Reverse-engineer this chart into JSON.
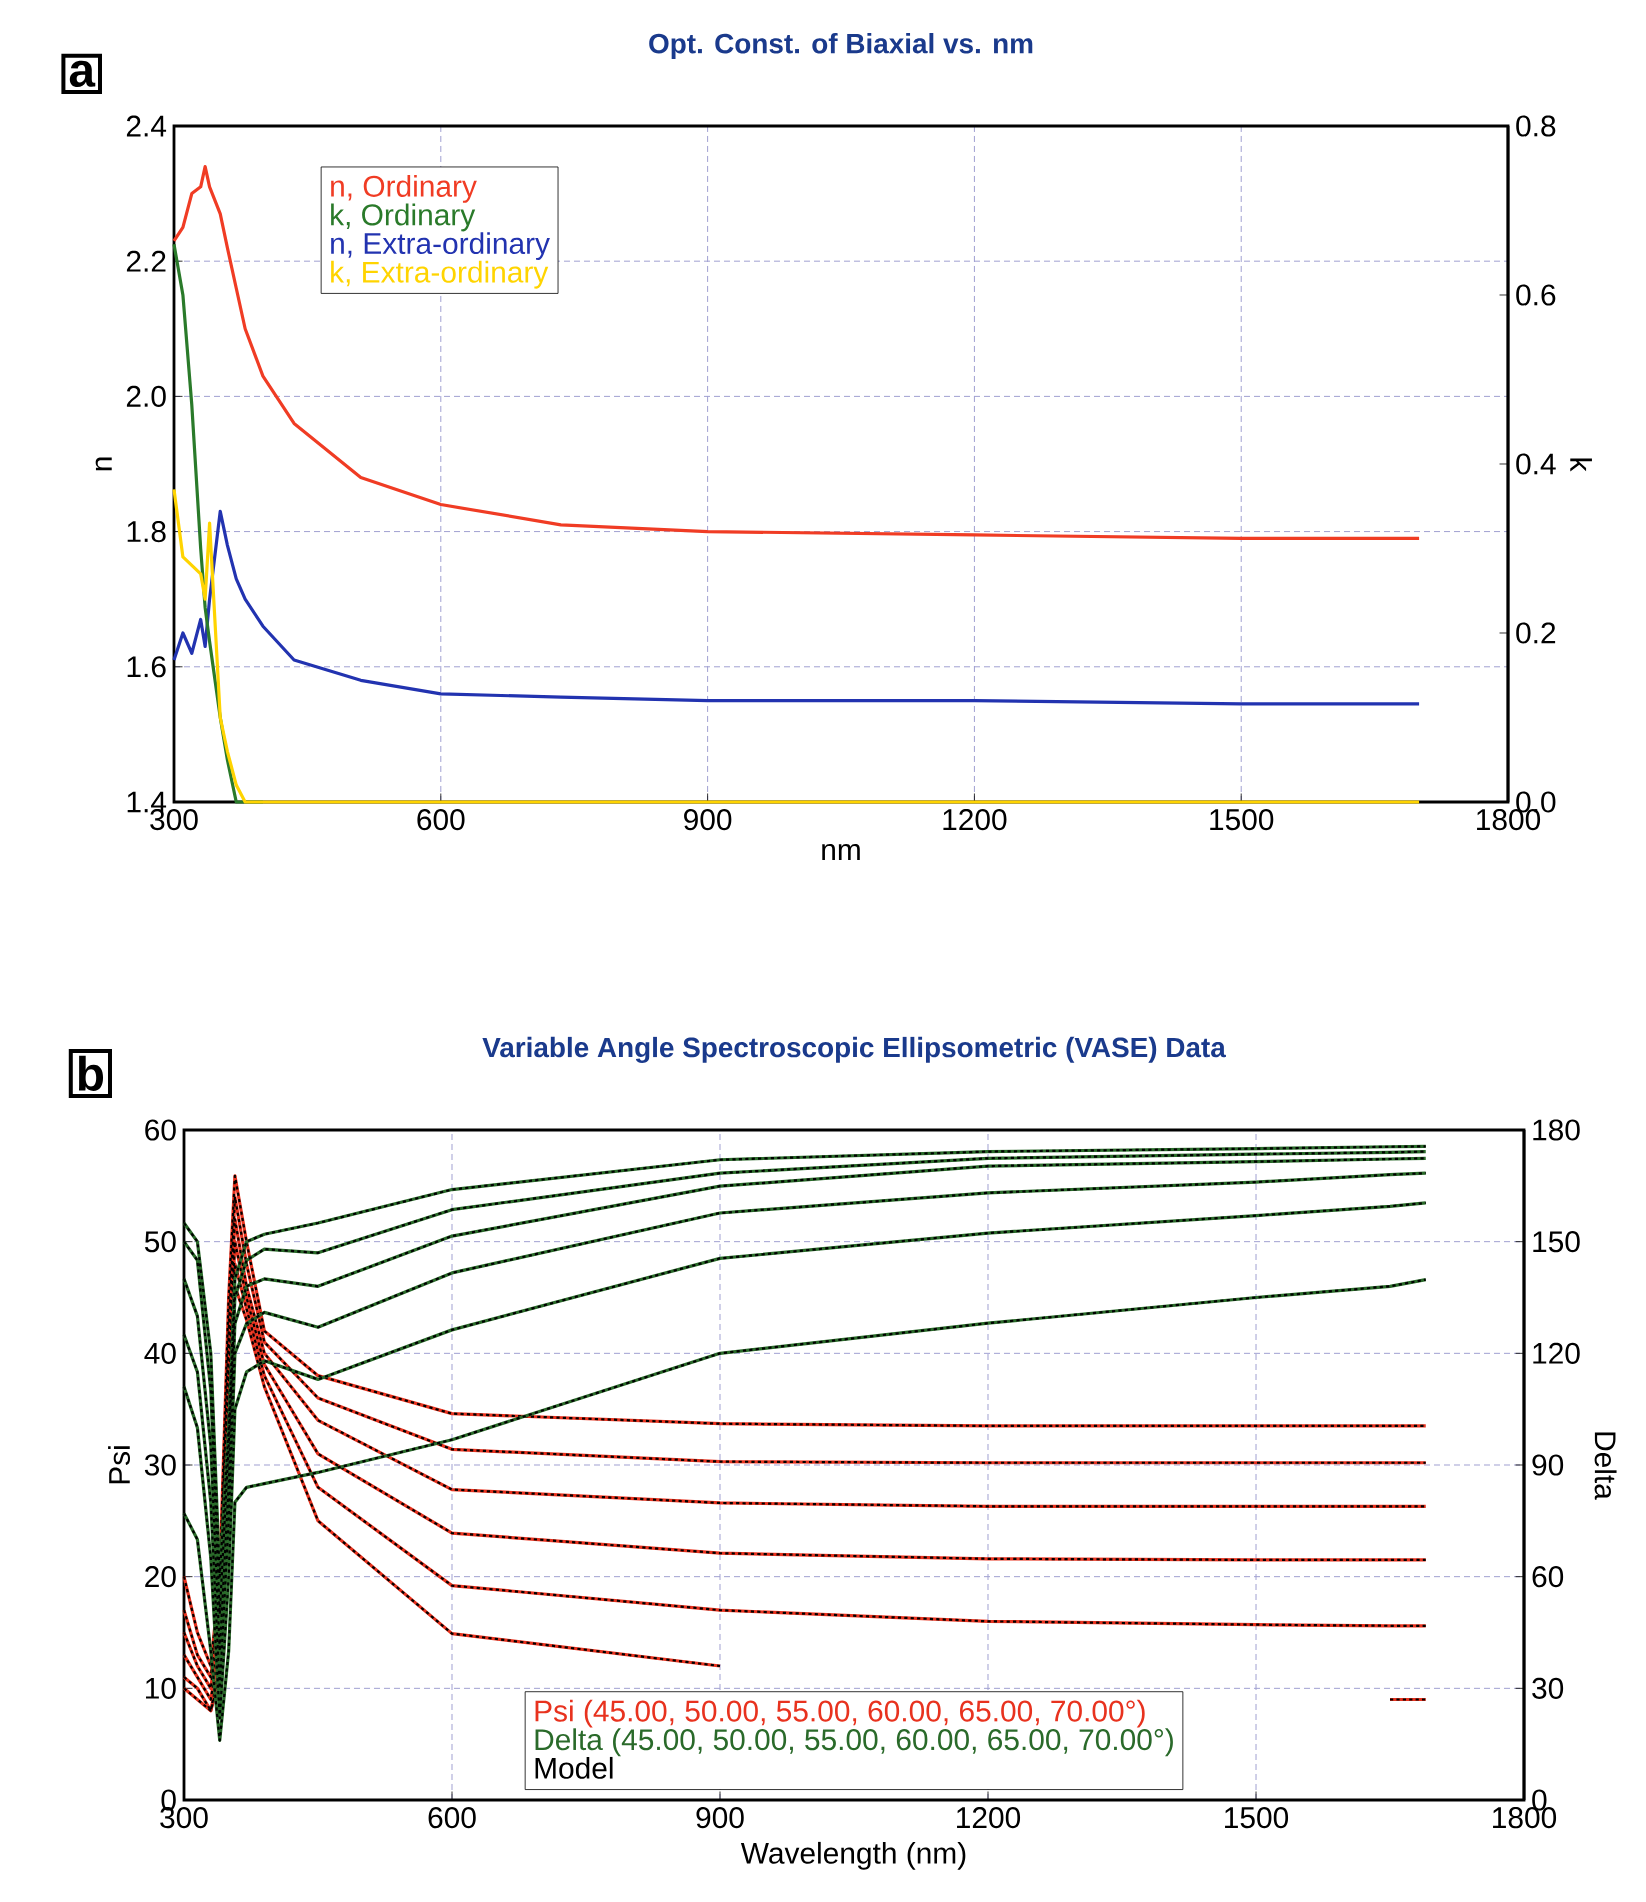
{
  "chart_data": [
    {
      "type": "line",
      "title": "Opt. Const. of Biaxial vs. nm",
      "xlabel": "nm",
      "ylabel": "n",
      "y2label": "k",
      "annotations": [
        "a"
      ],
      "x": [
        300,
        310,
        320,
        330,
        335,
        340,
        352,
        360,
        370,
        380,
        400,
        435,
        510,
        600,
        735,
        900,
        1200,
        1500,
        1700
      ],
      "xlim": [
        300,
        1800
      ],
      "xticks": [
        300,
        600,
        900,
        1200,
        1500,
        1800
      ],
      "ylim": [
        1.4,
        2.4
      ],
      "yticks": [
        1.4,
        1.6,
        1.8,
        {
          "value": 2.0,
          "label": "2.0"
        },
        2.2,
        2.4
      ],
      "y2lim": [
        0,
        0.8
      ],
      "y2ticks": [
        {
          "value": 0,
          "label": "0.0"
        },
        0.2,
        0.4,
        0.6,
        0.8
      ],
      "grid": true,
      "legend": "top left",
      "series": [
        {
          "name": "n, Ordinary",
          "color": "#f03c24",
          "values": [
            2.23,
            2.25,
            2.3,
            2.31,
            2.34,
            2.31,
            2.27,
            2.22,
            2.16,
            2.1,
            2.03,
            1.96,
            1.88,
            1.84,
            1.81,
            1.8,
            1.795,
            1.79,
            1.79
          ]
        },
        {
          "name": "k, Ordinary",
          "color": "#2a7a2a",
          "axis": "y2",
          "values": [
            0.66,
            0.6,
            0.47,
            0.3,
            0.23,
            0.19,
            0.1,
            0.05,
            0,
            0,
            0,
            null,
            null,
            null,
            null,
            null,
            null,
            null,
            null
          ]
        },
        {
          "name": "n, Extra-ordinary",
          "color": "#2233b0",
          "values": [
            1.61,
            1.65,
            1.62,
            1.67,
            1.63,
            1.7,
            1.83,
            1.78,
            1.73,
            1.7,
            1.66,
            1.61,
            1.58,
            1.56,
            1.555,
            1.55,
            1.55,
            1.545,
            1.545
          ]
        },
        {
          "name": "k, Extra-ordinary",
          "color": "#ffd400",
          "axis": "y2",
          "values": [
            0.37,
            0.29,
            0.28,
            0.27,
            0.24,
            0.33,
            0.1,
            0.06,
            0.02,
            0,
            0,
            0,
            0,
            0,
            0,
            0,
            0,
            0,
            0
          ]
        }
      ]
    },
    {
      "type": "line",
      "title": "Variable Angle Spectroscopic Ellipsometric (VASE) Data",
      "xlabel": "Wavelength (nm)",
      "ylabel": "Psi",
      "y2label": "Delta",
      "annotations": [
        "b"
      ],
      "x": [
        300,
        315,
        330,
        340,
        350,
        357,
        370,
        390,
        450,
        600,
        900,
        1200,
        1500,
        1650,
        1690
      ],
      "xlim": [
        300,
        1800
      ],
      "xticks": [
        300,
        600,
        900,
        1200,
        1500,
        1800
      ],
      "ylim": [
        0,
        60
      ],
      "yticks": [
        0,
        10,
        20,
        30,
        40,
        50,
        60
      ],
      "y2lim": [
        0,
        180
      ],
      "y2ticks": [
        0,
        30,
        60,
        90,
        120,
        150,
        180
      ],
      "grid": true,
      "legend": "bottom",
      "series": [
        {
          "name": "Psi (45.00, 50.00, 55.00, 60.00, 65.00, 70.00°)",
          "color": "#e8321e",
          "values": [
            20,
            15,
            12,
            20,
            45,
            55.9,
            50,
            42,
            38,
            34.6,
            33.7,
            33.5,
            33.5,
            33.5,
            33.5
          ]
        },
        {
          "color": "#e8321e",
          "values": [
            17,
            13,
            11,
            18,
            42,
            54,
            48,
            41,
            36,
            31.4,
            30.3,
            30.2,
            30.2,
            30.2,
            30.2
          ]
        },
        {
          "color": "#e8321e",
          "values": [
            15,
            12,
            10,
            16,
            40,
            52,
            46,
            40,
            34,
            27.8,
            26.6,
            26.3,
            26.3,
            26.3,
            26.3
          ]
        },
        {
          "color": "#e8321e",
          "values": [
            13,
            11,
            9,
            14,
            37,
            50,
            45,
            39,
            31,
            23.9,
            22.1,
            21.6,
            21.5,
            21.5,
            21.5
          ]
        },
        {
          "color": "#e8321e",
          "values": [
            11,
            10,
            8,
            12,
            34,
            48,
            44,
            38,
            28,
            19.2,
            17.0,
            16.0,
            15.7,
            15.6,
            15.6
          ]
        },
        {
          "color": "#e8321e",
          "values": [
            10,
            9,
            8,
            11,
            31,
            46,
            43,
            37,
            25,
            14.9,
            12.0,
            null,
            null,
            9.0,
            9.0
          ]
        },
        {
          "name": "Delta (45.00, 50.00, 55.00, 60.00, 65.00, 70.00°)",
          "color": "#2a6a2a",
          "axis": "y2",
          "values": [
            155,
            150,
            120,
            60,
            100,
            140,
            150,
            152,
            155,
            164,
            172,
            174.2,
            175,
            175.5,
            175.6
          ]
        },
        {
          "color": "#2a6a2a",
          "axis": "y2",
          "values": [
            150,
            145,
            110,
            50,
            95,
            135,
            145,
            148,
            147,
            158.6,
            168.4,
            172.4,
            173.5,
            174,
            174.2
          ]
        },
        {
          "color": "#2a6a2a",
          "axis": "y2",
          "values": [
            140,
            130,
            95,
            40,
            85,
            128,
            138,
            140,
            138,
            151.5,
            164.9,
            170.3,
            171.5,
            172.2,
            172.4
          ]
        },
        {
          "color": "#2a6a2a",
          "axis": "y2",
          "values": [
            125,
            115,
            80,
            30,
            75,
            120,
            128,
            131,
            127,
            141.6,
            157.7,
            163.1,
            166,
            168,
            168.4
          ]
        },
        {
          "color": "#2a6a2a",
          "axis": "y2",
          "values": [
            111,
            100,
            65,
            22,
            60,
            105,
            115,
            118,
            113,
            126.3,
            145.5,
            152.3,
            157,
            159.5,
            160.4
          ]
        },
        {
          "color": "#2a6a2a",
          "axis": "y2",
          "values": [
            77,
            70,
            40,
            16,
            40,
            80,
            84,
            85,
            88,
            96.8,
            120,
            128.1,
            135,
            138,
            139.8
          ]
        },
        {
          "name": "Model",
          "color": "#000000",
          "line_style": "dotted",
          "values": [
            20,
            15,
            12,
            20,
            45,
            55.9,
            50,
            42,
            38,
            34.6,
            33.7,
            33.5,
            33.5,
            33.5,
            33.5
          ]
        },
        {
          "color": "#000000",
          "line_style": "dotted",
          "values": [
            17,
            13,
            11,
            18,
            42,
            54,
            48,
            41,
            36,
            31.4,
            30.3,
            30.2,
            30.2,
            30.2,
            30.2
          ]
        },
        {
          "color": "#000000",
          "line_style": "dotted",
          "values": [
            15,
            12,
            10,
            16,
            40,
            52,
            46,
            40,
            34,
            27.8,
            26.6,
            26.3,
            26.3,
            26.3,
            26.3
          ]
        },
        {
          "color": "#000000",
          "line_style": "dotted",
          "values": [
            13,
            11,
            9,
            14,
            37,
            50,
            45,
            39,
            31,
            23.9,
            22.1,
            21.6,
            21.5,
            21.5,
            21.5
          ]
        },
        {
          "color": "#000000",
          "line_style": "dotted",
          "values": [
            11,
            10,
            8,
            12,
            34,
            48,
            44,
            38,
            28,
            19.2,
            17.0,
            16.0,
            15.7,
            15.6,
            15.6
          ]
        },
        {
          "color": "#000000",
          "line_style": "dotted",
          "values": [
            10,
            9,
            8,
            11,
            31,
            46,
            43,
            37,
            25,
            14.9,
            12.0,
            null,
            null,
            9.0,
            9.0
          ]
        },
        {
          "color": "#000000",
          "line_style": "dotted",
          "axis": "y2",
          "values": [
            155,
            150,
            120,
            60,
            100,
            140,
            150,
            152,
            155,
            164,
            172,
            174.2,
            175,
            175.5,
            175.6
          ]
        },
        {
          "color": "#000000",
          "line_style": "dotted",
          "axis": "y2",
          "values": [
            150,
            145,
            110,
            50,
            95,
            135,
            145,
            148,
            147,
            158.6,
            168.4,
            172.4,
            173.5,
            174,
            174.2
          ]
        },
        {
          "color": "#000000",
          "line_style": "dotted",
          "axis": "y2",
          "values": [
            140,
            130,
            95,
            40,
            85,
            128,
            138,
            140,
            138,
            151.5,
            164.9,
            170.3,
            171.5,
            172.2,
            172.4
          ]
        },
        {
          "color": "#000000",
          "line_style": "dotted",
          "axis": "y2",
          "values": [
            125,
            115,
            80,
            30,
            75,
            120,
            128,
            131,
            127,
            141.6,
            157.7,
            163.1,
            166,
            168,
            168.4
          ]
        },
        {
          "color": "#000000",
          "line_style": "dotted",
          "axis": "y2",
          "values": [
            111,
            100,
            65,
            22,
            60,
            105,
            115,
            118,
            113,
            126.3,
            145.5,
            152.3,
            157,
            159.5,
            160.4
          ]
        },
        {
          "color": "#000000",
          "line_style": "dotted",
          "axis": "y2",
          "values": [
            77,
            70,
            40,
            16,
            40,
            80,
            84,
            85,
            88,
            96.8,
            120,
            128.1,
            135,
            138,
            139.8
          ]
        }
      ]
    }
  ]
}
